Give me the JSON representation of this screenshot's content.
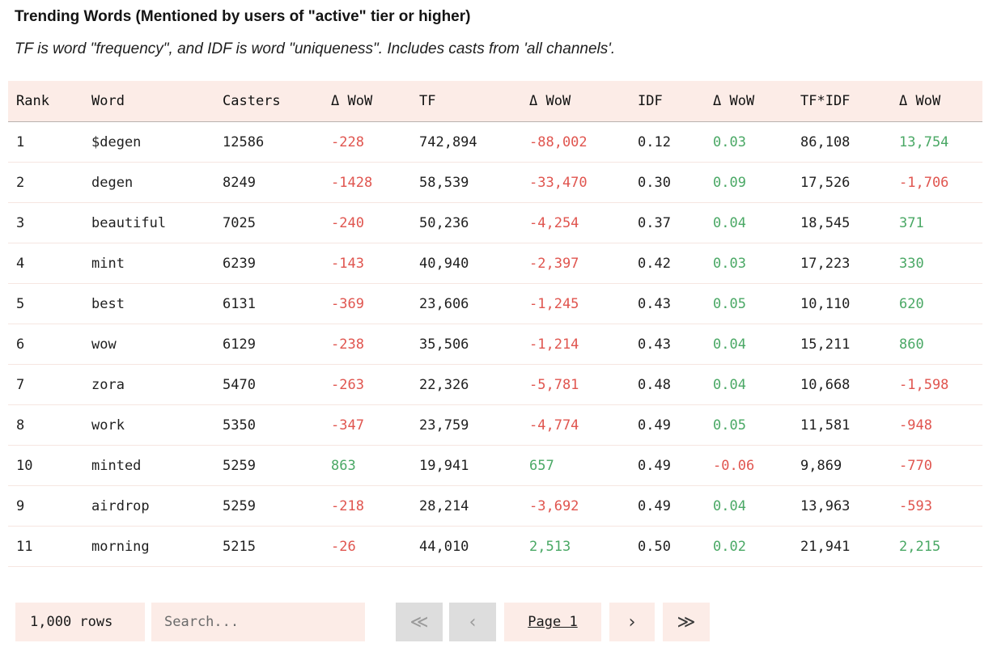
{
  "header": {
    "title": "Trending Words (Mentioned by users of \"active\" tier or higher)",
    "subtitle": "TF is word \"frequency\", and IDF is word \"uniqueness\". Includes casts from 'all channels'."
  },
  "table": {
    "columns": [
      "Rank",
      "Word",
      "Casters",
      "Δ WoW",
      "TF",
      "Δ WoW",
      "IDF",
      "Δ WoW",
      "TF*IDF",
      "Δ WoW"
    ],
    "rows": [
      [
        "1",
        "$degen",
        "12586",
        "-228",
        "742,894",
        "-88,002",
        "0.12",
        "0.03",
        "86,108",
        "13,754"
      ],
      [
        "2",
        "degen",
        "8249",
        "-1428",
        "58,539",
        "-33,470",
        "0.30",
        "0.09",
        "17,526",
        "-1,706"
      ],
      [
        "3",
        "beautiful",
        "7025",
        "-240",
        "50,236",
        "-4,254",
        "0.37",
        "0.04",
        "18,545",
        "371"
      ],
      [
        "4",
        "mint",
        "6239",
        "-143",
        "40,940",
        "-2,397",
        "0.42",
        "0.03",
        "17,223",
        "330"
      ],
      [
        "5",
        "best",
        "6131",
        "-369",
        "23,606",
        "-1,245",
        "0.43",
        "0.05",
        "10,110",
        "620"
      ],
      [
        "6",
        "wow",
        "6129",
        "-238",
        "35,506",
        "-1,214",
        "0.43",
        "0.04",
        "15,211",
        "860"
      ],
      [
        "7",
        "zora",
        "5470",
        "-263",
        "22,326",
        "-5,781",
        "0.48",
        "0.04",
        "10,668",
        "-1,598"
      ],
      [
        "8",
        "work",
        "5350",
        "-347",
        "23,759",
        "-4,774",
        "0.49",
        "0.05",
        "11,581",
        "-948"
      ],
      [
        "10",
        "minted",
        "5259",
        "863",
        "19,941",
        "657",
        "0.49",
        "-0.06",
        "9,869",
        "-770"
      ],
      [
        "9",
        "airdrop",
        "5259",
        "-218",
        "28,214",
        "-3,692",
        "0.49",
        "0.04",
        "13,963",
        "-593"
      ],
      [
        "11",
        "morning",
        "5215",
        "-26",
        "44,010",
        "2,513",
        "0.50",
        "0.02",
        "21,941",
        "2,215"
      ]
    ]
  },
  "footer": {
    "rows_count": "1,000 rows",
    "search_placeholder": "Search...",
    "first_page": "≪",
    "prev_page": "‹",
    "page_label": "Page 1",
    "next_page": "›",
    "last_page": "≫"
  },
  "colors": {
    "header_bg": "#fcece7",
    "negative": "#e0554f",
    "positive": "#4aa865",
    "disabled_bg": "#dddddd"
  }
}
